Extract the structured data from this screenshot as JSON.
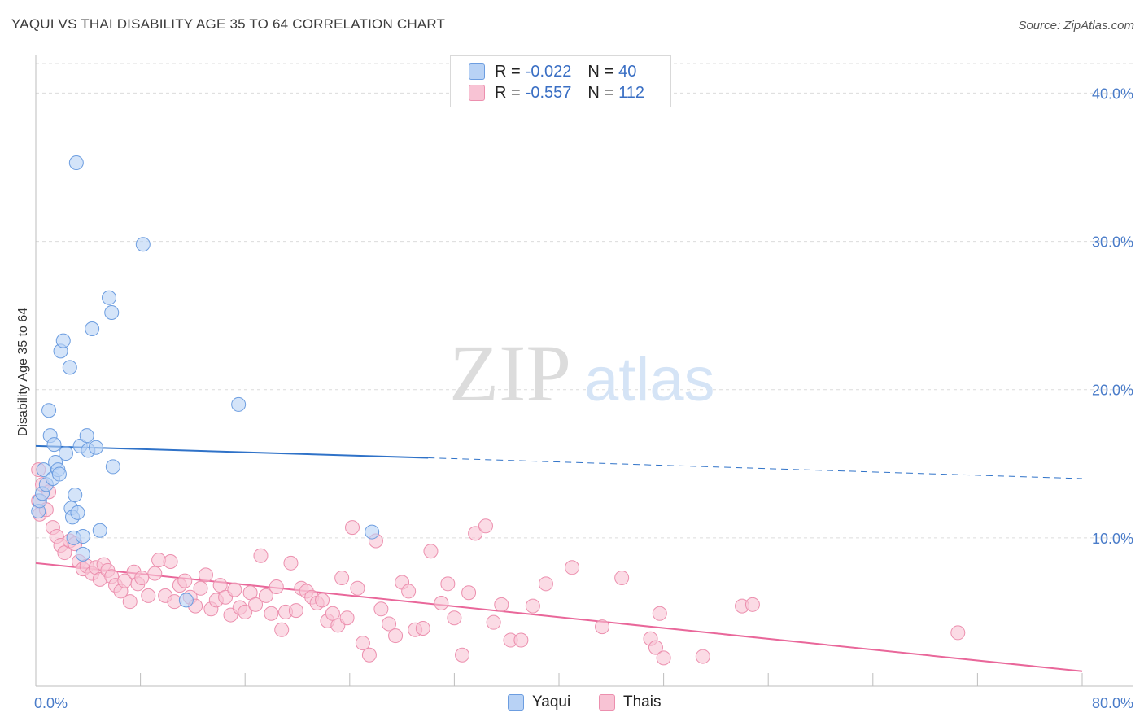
{
  "title": "YAQUI VS THAI DISABILITY AGE 35 TO 64 CORRELATION CHART",
  "source": "Source: ZipAtlas.com",
  "watermark": {
    "zip": "ZIP",
    "atlas": "atlas"
  },
  "legend_top": [
    {
      "r_label": "R =",
      "r_value": "-0.022",
      "n_label": "N =",
      "n_value": "40"
    },
    {
      "r_label": "R =",
      "r_value": "-0.557",
      "n_label": "N =",
      "n_value": "112"
    }
  ],
  "bottom_legend": [
    "Yaqui",
    "Thais"
  ],
  "colors": {
    "yaqui_fill": "#b8d2f5",
    "yaqui_stroke": "#6c9de0",
    "yaqui_line": "#2f72c8",
    "thai_fill": "#f8c3d4",
    "thai_stroke": "#ec8fae",
    "thai_line": "#e9679a",
    "grid": "#dcdcdc",
    "tick_text": "#4a7cc9"
  },
  "chart_data": {
    "type": "scatter",
    "title": "YAQUI VS THAI DISABILITY AGE 35 TO 64 CORRELATION CHART",
    "xlabel": "",
    "ylabel": "Disability Age 35 to 64",
    "xlim": [
      0,
      80
    ],
    "ylim": [
      0,
      42
    ],
    "x_tick_labels": [
      "0.0%",
      "80.0%"
    ],
    "y_ticks": [
      10,
      20,
      30,
      40
    ],
    "y_tick_labels": [
      "10.0%",
      "20.0%",
      "30.0%",
      "40.0%"
    ],
    "series": [
      {
        "name": "Yaqui",
        "r": -0.022,
        "n": 40,
        "trend": {
          "x0": 0,
          "y0": 16.2,
          "x1": 30,
          "y1": 15.4,
          "dash_to_x": 80,
          "dash_to_y": 14.0
        },
        "points": [
          [
            0.2,
            11.8
          ],
          [
            0.3,
            12.5
          ],
          [
            0.5,
            13.0
          ],
          [
            0.6,
            14.6
          ],
          [
            0.8,
            13.6
          ],
          [
            1.0,
            18.6
          ],
          [
            1.1,
            16.9
          ],
          [
            1.3,
            14.0
          ],
          [
            1.4,
            16.3
          ],
          [
            1.5,
            15.1
          ],
          [
            1.7,
            14.6
          ],
          [
            1.8,
            14.3
          ],
          [
            1.9,
            22.6
          ],
          [
            2.1,
            23.3
          ],
          [
            2.3,
            15.7
          ],
          [
            2.6,
            21.5
          ],
          [
            2.7,
            12.0
          ],
          [
            2.8,
            11.4
          ],
          [
            2.9,
            10.0
          ],
          [
            3.0,
            12.9
          ],
          [
            3.1,
            35.3
          ],
          [
            3.2,
            11.7
          ],
          [
            3.4,
            16.2
          ],
          [
            3.6,
            10.1
          ],
          [
            3.6,
            8.9
          ],
          [
            3.9,
            16.9
          ],
          [
            4.0,
            15.9
          ],
          [
            4.3,
            24.1
          ],
          [
            4.6,
            16.1
          ],
          [
            4.9,
            10.5
          ],
          [
            5.6,
            26.2
          ],
          [
            5.8,
            25.2
          ],
          [
            5.9,
            14.8
          ],
          [
            8.2,
            29.8
          ],
          [
            11.5,
            5.8
          ],
          [
            15.5,
            19.0
          ],
          [
            25.7,
            10.4
          ]
        ]
      },
      {
        "name": "Thais",
        "r": -0.557,
        "n": 112,
        "trend": {
          "x0": 0,
          "y0": 8.3,
          "x1": 80,
          "y1": 1.0
        },
        "points": [
          [
            0.2,
            14.6
          ],
          [
            0.2,
            12.5
          ],
          [
            0.3,
            11.6
          ],
          [
            0.5,
            13.6
          ],
          [
            0.8,
            11.9
          ],
          [
            1.0,
            13.1
          ],
          [
            1.3,
            10.7
          ],
          [
            1.6,
            10.1
          ],
          [
            1.9,
            9.5
          ],
          [
            2.2,
            9.0
          ],
          [
            2.6,
            9.8
          ],
          [
            3.0,
            9.6
          ],
          [
            3.3,
            8.4
          ],
          [
            3.6,
            7.9
          ],
          [
            3.9,
            8.1
          ],
          [
            4.3,
            7.6
          ],
          [
            4.6,
            8.0
          ],
          [
            4.9,
            7.2
          ],
          [
            5.2,
            8.2
          ],
          [
            5.5,
            7.8
          ],
          [
            5.8,
            7.4
          ],
          [
            6.1,
            6.8
          ],
          [
            6.5,
            6.4
          ],
          [
            6.8,
            7.1
          ],
          [
            7.2,
            5.7
          ],
          [
            7.5,
            7.7
          ],
          [
            7.8,
            6.9
          ],
          [
            8.1,
            7.3
          ],
          [
            8.6,
            6.1
          ],
          [
            9.1,
            7.6
          ],
          [
            9.4,
            8.5
          ],
          [
            9.9,
            6.1
          ],
          [
            10.3,
            8.4
          ],
          [
            10.6,
            5.7
          ],
          [
            11.0,
            6.8
          ],
          [
            11.4,
            7.1
          ],
          [
            11.8,
            6.0
          ],
          [
            12.2,
            5.4
          ],
          [
            12.6,
            6.6
          ],
          [
            13.0,
            7.5
          ],
          [
            13.4,
            5.2
          ],
          [
            13.8,
            5.8
          ],
          [
            14.1,
            6.8
          ],
          [
            14.5,
            6.0
          ],
          [
            14.9,
            4.8
          ],
          [
            15.2,
            6.5
          ],
          [
            15.6,
            5.3
          ],
          [
            16.0,
            5.0
          ],
          [
            16.4,
            6.3
          ],
          [
            16.8,
            5.5
          ],
          [
            17.2,
            8.8
          ],
          [
            17.6,
            6.1
          ],
          [
            18.0,
            4.9
          ],
          [
            18.4,
            6.7
          ],
          [
            18.8,
            3.8
          ],
          [
            19.1,
            5.0
          ],
          [
            19.5,
            8.3
          ],
          [
            19.9,
            5.1
          ],
          [
            20.3,
            6.6
          ],
          [
            20.7,
            6.4
          ],
          [
            21.1,
            6.0
          ],
          [
            21.5,
            5.6
          ],
          [
            21.9,
            5.8
          ],
          [
            22.3,
            4.4
          ],
          [
            22.7,
            4.9
          ],
          [
            23.1,
            4.1
          ],
          [
            23.4,
            7.3
          ],
          [
            23.8,
            4.6
          ],
          [
            24.2,
            10.7
          ],
          [
            24.6,
            6.6
          ],
          [
            25.0,
            2.9
          ],
          [
            25.5,
            2.1
          ],
          [
            26.0,
            9.8
          ],
          [
            26.4,
            5.2
          ],
          [
            27.0,
            4.2
          ],
          [
            27.5,
            3.4
          ],
          [
            28.0,
            7.0
          ],
          [
            28.5,
            6.4
          ],
          [
            29.0,
            3.8
          ],
          [
            29.6,
            3.9
          ],
          [
            30.2,
            9.1
          ],
          [
            31.0,
            5.6
          ],
          [
            31.5,
            6.9
          ],
          [
            32.0,
            4.6
          ],
          [
            32.6,
            2.1
          ],
          [
            33.1,
            6.3
          ],
          [
            33.6,
            10.3
          ],
          [
            34.4,
            10.8
          ],
          [
            35.0,
            4.3
          ],
          [
            35.6,
            5.5
          ],
          [
            36.3,
            3.1
          ],
          [
            37.1,
            3.1
          ],
          [
            38.0,
            5.4
          ],
          [
            39.0,
            6.9
          ],
          [
            41.0,
            8.0
          ],
          [
            43.3,
            4.0
          ],
          [
            44.8,
            7.3
          ],
          [
            47.0,
            3.2
          ],
          [
            47.4,
            2.6
          ],
          [
            47.7,
            4.9
          ],
          [
            48.0,
            1.9
          ],
          [
            51.0,
            2.0
          ],
          [
            54.0,
            5.4
          ],
          [
            54.8,
            5.5
          ],
          [
            70.5,
            3.6
          ]
        ]
      }
    ]
  }
}
